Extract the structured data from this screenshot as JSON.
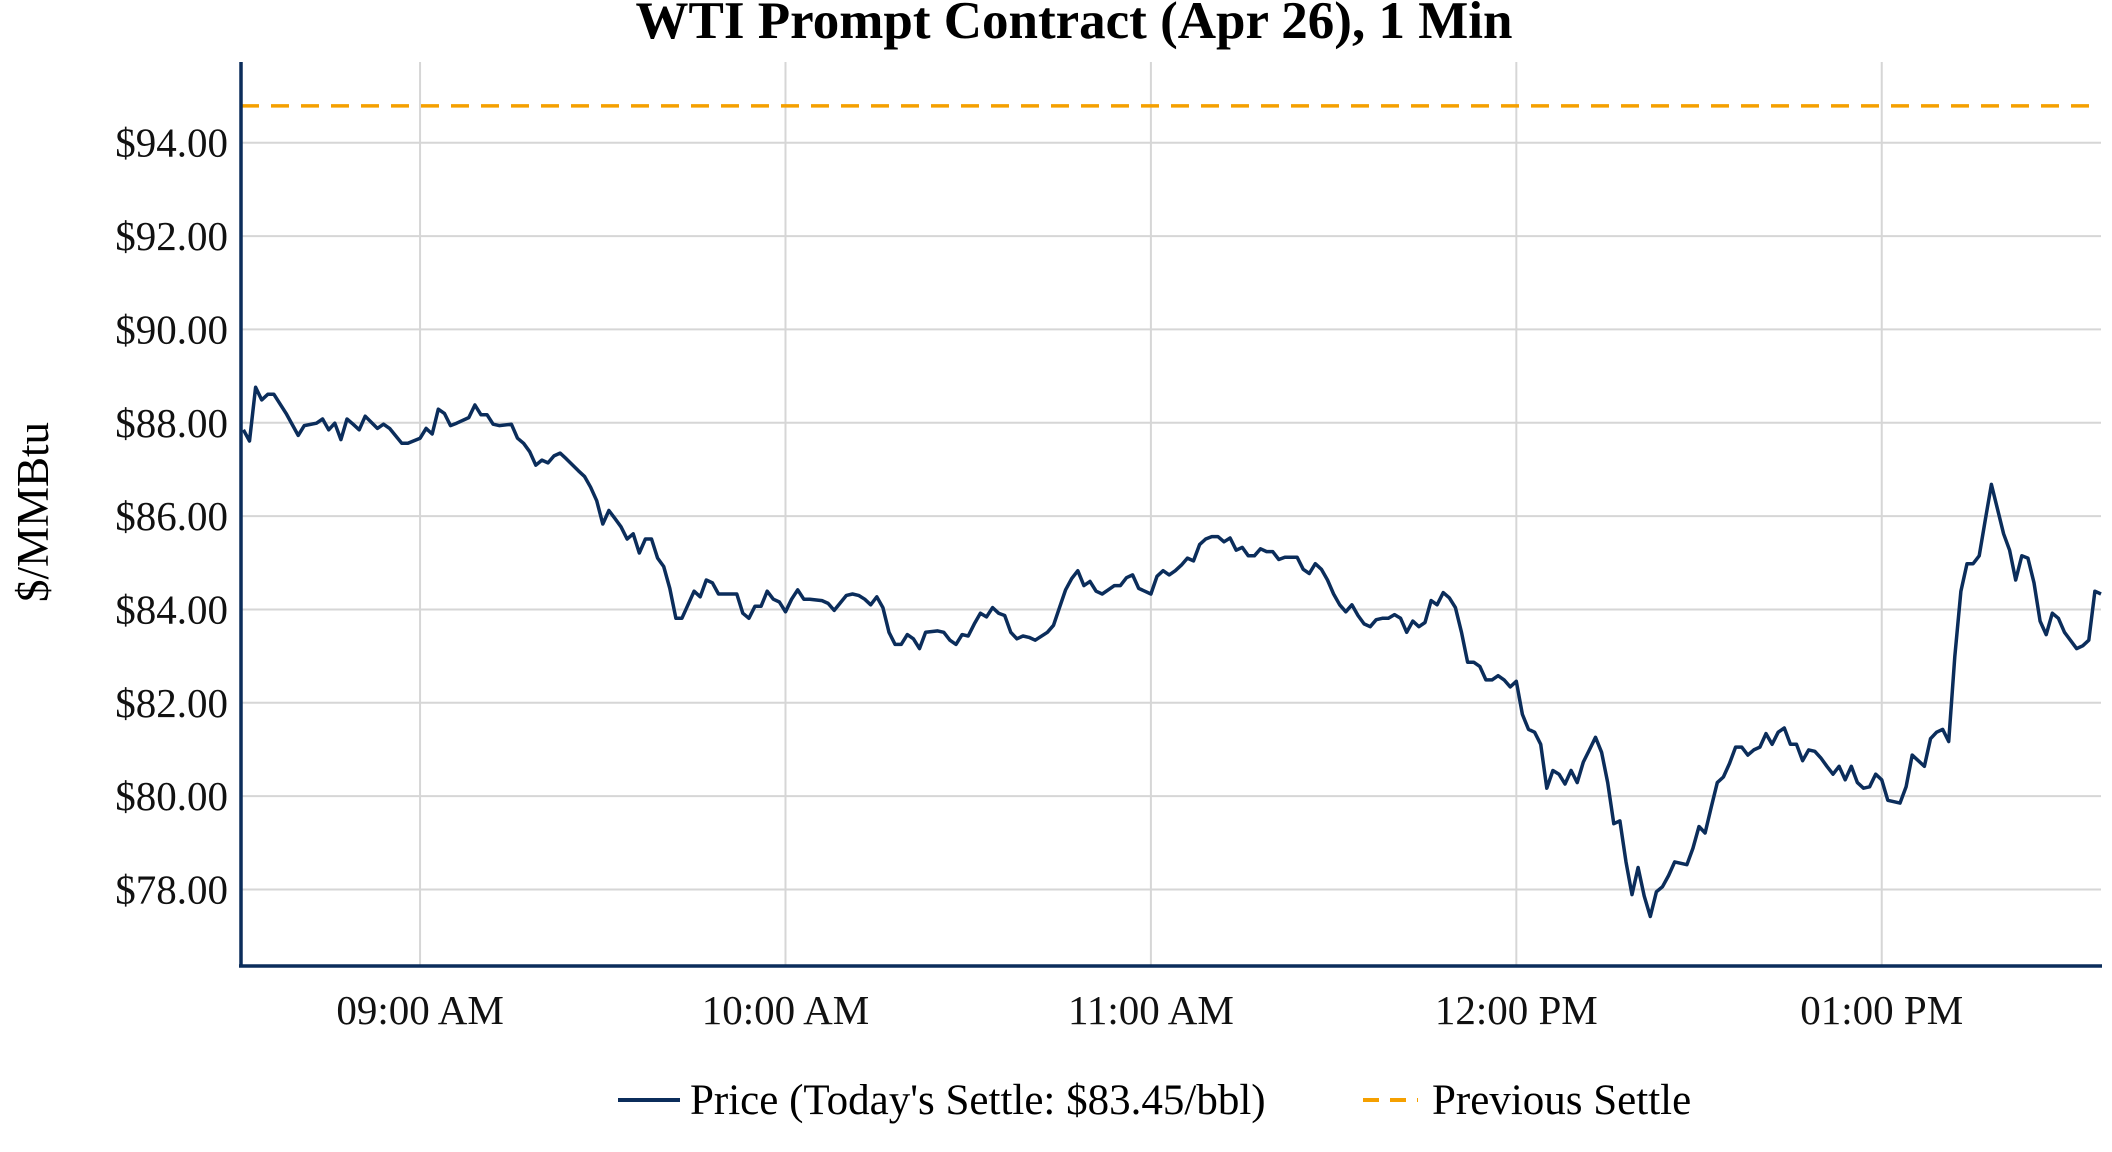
{
  "chart_data": {
    "type": "line",
    "title": "WTI Prompt Contract (Apr 26), 1 Min",
    "xlabel": "",
    "ylabel": "$/MMBtu",
    "x_unit": "minutes after 08:00",
    "xlim": [
      30.6,
      336
    ],
    "ylim": [
      76.36,
      95.73
    ],
    "grid": true,
    "legend_position": "bottom-center",
    "x_ticks": [
      {
        "value": 60,
        "label": "09:00 AM"
      },
      {
        "value": 120,
        "label": "10:00 AM"
      },
      {
        "value": 180,
        "label": "11:00 AM"
      },
      {
        "value": 240,
        "label": "12:00 PM"
      },
      {
        "value": 300,
        "label": "01:00 PM"
      }
    ],
    "y_ticks": [
      {
        "value": 78,
        "label": "$78.00"
      },
      {
        "value": 80,
        "label": "$80.00"
      },
      {
        "value": 82,
        "label": "$82.00"
      },
      {
        "value": 84,
        "label": "$84.00"
      },
      {
        "value": 86,
        "label": "$86.00"
      },
      {
        "value": 88,
        "label": "$88.00"
      },
      {
        "value": 90,
        "label": "$90.00"
      },
      {
        "value": 92,
        "label": "$92.00"
      },
      {
        "value": 94,
        "label": "$94.00"
      }
    ],
    "series": [
      {
        "name": "Price (Today's Settle: $83.45/bbl)",
        "color": "#0b2d5b",
        "style": "solid",
        "x": [
          31,
          32,
          33,
          34,
          35,
          36,
          38,
          40,
          41,
          43,
          44,
          45,
          46,
          47,
          48,
          49,
          50,
          51,
          53,
          54,
          55,
          57,
          58,
          60,
          61,
          62,
          63,
          64,
          65,
          66,
          68,
          69,
          70,
          71,
          72,
          73,
          75,
          76,
          77,
          78,
          79,
          80,
          81,
          82,
          83,
          84,
          86,
          87,
          88,
          89,
          90,
          91,
          92,
          93,
          94,
          95,
          96,
          97,
          98,
          99,
          100,
          101,
          102,
          103,
          105,
          106,
          107,
          108,
          109,
          110,
          112,
          113,
          114,
          115,
          116,
          117,
          118,
          119,
          120,
          121,
          122,
          123,
          124,
          126,
          127,
          128,
          130,
          131,
          132,
          133,
          134,
          135,
          136,
          137,
          138,
          139,
          140,
          141,
          142,
          143,
          145,
          146,
          147,
          148,
          149,
          150,
          151,
          152,
          153,
          154,
          155,
          156,
          157,
          158,
          159,
          160,
          161,
          163,
          164,
          165,
          166,
          167,
          168,
          169,
          170,
          171,
          172,
          173,
          174,
          175,
          176,
          177,
          178,
          179,
          180,
          181,
          182,
          183,
          184,
          185,
          186,
          187,
          188,
          189,
          190,
          191,
          192,
          193,
          194,
          195,
          196,
          197,
          198,
          199,
          200,
          201,
          202,
          203,
          204,
          205,
          206,
          207,
          208,
          209,
          210,
          211,
          212,
          213,
          214,
          215,
          216,
          217,
          218,
          219,
          220,
          221,
          222,
          223,
          224,
          225,
          226,
          227,
          228,
          229,
          230,
          231,
          232,
          233,
          234,
          235,
          236,
          237,
          238,
          239,
          240,
          241,
          242,
          243,
          244,
          245,
          246,
          247,
          248,
          249,
          250,
          251,
          252,
          253,
          254,
          255,
          256,
          257,
          258,
          259,
          260,
          261,
          262,
          263,
          264,
          265,
          266,
          267,
          268,
          269,
          270,
          271,
          272,
          273,
          274,
          275,
          276,
          277,
          278,
          279,
          280,
          281,
          282,
          283,
          284,
          285,
          286,
          287,
          288,
          289,
          290,
          291,
          292,
          293,
          294,
          295,
          296,
          297,
          298,
          299,
          300,
          301,
          302,
          303,
          304,
          305,
          306,
          307,
          308,
          309,
          310,
          311,
          312,
          313,
          314,
          315,
          316,
          317,
          318,
          319,
          320,
          321,
          322,
          323,
          324,
          325,
          326,
          327,
          328,
          329,
          330,
          332,
          333,
          334,
          335,
          336
        ],
        "y": [
          87.85,
          87.61,
          88.76,
          88.49,
          88.61,
          88.61,
          88.2,
          87.73,
          87.94,
          87.99,
          88.08,
          87.85,
          87.99,
          87.64,
          88.08,
          87.97,
          87.85,
          88.14,
          87.88,
          87.97,
          87.88,
          87.56,
          87.56,
          87.67,
          87.88,
          87.76,
          88.29,
          88.2,
          87.94,
          87.99,
          88.11,
          88.38,
          88.17,
          88.17,
          87.97,
          87.94,
          87.97,
          87.67,
          87.56,
          87.38,
          87.09,
          87.2,
          87.14,
          87.29,
          87.35,
          87.23,
          86.97,
          86.85,
          86.62,
          86.33,
          85.83,
          86.12,
          85.95,
          85.77,
          85.51,
          85.62,
          85.21,
          85.51,
          85.51,
          85.1,
          84.92,
          84.45,
          83.81,
          83.81,
          84.39,
          84.27,
          84.63,
          84.57,
          84.33,
          84.33,
          84.33,
          83.92,
          83.81,
          84.07,
          84.07,
          84.39,
          84.22,
          84.16,
          83.95,
          84.22,
          84.42,
          84.22,
          84.22,
          84.19,
          84.13,
          83.98,
          84.3,
          84.33,
          84.3,
          84.22,
          84.1,
          84.27,
          84.04,
          83.51,
          83.25,
          83.25,
          83.46,
          83.37,
          83.16,
          83.51,
          83.54,
          83.51,
          83.34,
          83.25,
          83.46,
          83.43,
          83.69,
          83.92,
          83.84,
          84.04,
          83.92,
          83.87,
          83.51,
          83.37,
          83.43,
          83.4,
          83.34,
          83.51,
          83.66,
          84.04,
          84.42,
          84.66,
          84.83,
          84.51,
          84.6,
          84.39,
          84.33,
          84.42,
          84.51,
          84.51,
          84.68,
          84.74,
          84.45,
          84.39,
          84.33,
          84.71,
          84.83,
          84.74,
          84.83,
          84.95,
          85.1,
          85.04,
          85.39,
          85.51,
          85.56,
          85.56,
          85.45,
          85.53,
          85.27,
          85.33,
          85.15,
          85.15,
          85.3,
          85.24,
          85.24,
          85.07,
          85.12,
          85.12,
          85.12,
          84.86,
          84.77,
          84.98,
          84.86,
          84.63,
          84.33,
          84.1,
          83.95,
          84.1,
          83.87,
          83.69,
          83.63,
          83.78,
          83.81,
          83.81,
          83.89,
          83.81,
          83.51,
          83.75,
          83.63,
          83.72,
          84.19,
          84.1,
          84.36,
          84.25,
          84.04,
          83.51,
          82.87,
          82.87,
          82.78,
          82.49,
          82.49,
          82.58,
          82.49,
          82.34,
          82.46,
          81.75,
          81.43,
          81.37,
          81.11,
          80.17,
          80.55,
          80.47,
          80.26,
          80.55,
          80.29,
          80.73,
          80.99,
          81.26,
          80.94,
          80.29,
          79.41,
          79.47,
          78.59,
          77.89,
          78.47,
          77.86,
          77.42,
          77.95,
          78.06,
          78.3,
          78.59,
          78.56,
          78.53,
          78.88,
          79.35,
          79.21,
          79.76,
          80.29,
          80.41,
          80.7,
          81.05,
          81.05,
          80.88,
          80.99,
          81.05,
          81.34,
          81.11,
          81.37,
          81.46,
          81.11,
          81.11,
          80.76,
          80.99,
          80.96,
          80.82,
          80.64,
          80.47,
          80.64,
          80.35,
          80.64,
          80.29,
          80.17,
          80.2,
          80.47,
          80.35,
          79.91,
          79.88,
          79.85,
          80.2,
          80.88,
          80.76,
          80.64,
          81.23,
          81.37,
          81.43,
          81.17,
          82.99,
          84.39,
          84.98,
          84.98,
          85.15,
          85.92,
          86.68,
          86.15,
          85.62,
          85.27,
          84.63,
          85.15,
          85.1,
          84.57,
          83.75,
          83.46,
          83.92,
          83.81,
          83.51,
          83.16,
          83.22,
          83.34,
          84.39,
          84.33
        ]
      },
      {
        "name": "Previous Settle",
        "color": "#f5a000",
        "style": "dashed",
        "value": 94.79
      }
    ]
  }
}
